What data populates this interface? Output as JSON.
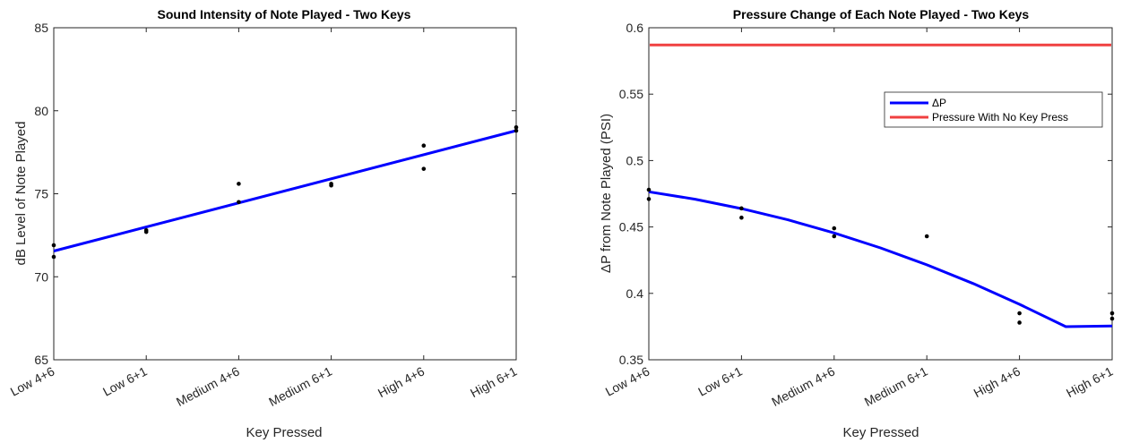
{
  "chart_data": [
    {
      "type": "scatter",
      "title": "Sound Intensity of Note Played - Two Keys",
      "xlabel": "Key Pressed",
      "ylabel": "dB Level of Note Played",
      "categories": [
        "Low 4+6",
        "Low 6+1",
        "Medium 4+6",
        "Medium 6+1",
        "High 4+6",
        "High 6+1"
      ],
      "ylim": [
        65,
        85
      ],
      "yticks": [
        "65",
        "70",
        "75",
        "80",
        "85"
      ],
      "grid": false,
      "points": [
        {
          "x": 1,
          "y": 71.9
        },
        {
          "x": 1,
          "y": 71.2
        },
        {
          "x": 2,
          "y": 72.8
        },
        {
          "x": 2,
          "y": 72.7
        },
        {
          "x": 3,
          "y": 75.6
        },
        {
          "x": 3,
          "y": 74.5
        },
        {
          "x": 4,
          "y": 75.6
        },
        {
          "x": 4,
          "y": 75.5
        },
        {
          "x": 5,
          "y": 77.9
        },
        {
          "x": 5,
          "y": 76.5
        },
        {
          "x": 6,
          "y": 79.0
        },
        {
          "x": 6,
          "y": 78.8
        }
      ],
      "fit": {
        "type": "linear",
        "x": [
          1,
          6
        ],
        "y": [
          71.55,
          78.8
        ],
        "color": "#0000ff"
      },
      "colors": {
        "points": "#000000",
        "fit": "#0000ff"
      }
    },
    {
      "type": "scatter",
      "title": "Pressure Change of Each Note Played - Two Keys",
      "xlabel": "Key Pressed",
      "ylabel": "ΔP from Note Played (PSI)",
      "categories": [
        "Low 4+6",
        "Low 6+1",
        "Medium 4+6",
        "Medium 6+1",
        "High 4+6",
        "High 6+1"
      ],
      "ylim": [
        0.35,
        0.6
      ],
      "yticks": [
        "0.35",
        "0.4",
        "0.45",
        "0.5",
        "0.55",
        "0.6"
      ],
      "grid": false,
      "points": [
        {
          "x": 1,
          "y": 0.478
        },
        {
          "x": 1,
          "y": 0.471
        },
        {
          "x": 2,
          "y": 0.464
        },
        {
          "x": 2,
          "y": 0.457
        },
        {
          "x": 3,
          "y": 0.449
        },
        {
          "x": 3,
          "y": 0.443
        },
        {
          "x": 4,
          "y": 0.443
        },
        {
          "x": 5,
          "y": 0.385
        },
        {
          "x": 5,
          "y": 0.378
        },
        {
          "x": 6,
          "y": 0.385
        },
        {
          "x": 6,
          "y": 0.381
        }
      ],
      "fit": {
        "type": "quadratic",
        "x": [
          1,
          1.5,
          2,
          2.5,
          3,
          3.5,
          4,
          4.5,
          5,
          5.5,
          6
        ],
        "y": [
          0.4765,
          0.4709,
          0.4638,
          0.4554,
          0.4455,
          0.4342,
          0.4215,
          0.4074,
          0.3918,
          0.3749,
          0.3755
        ],
        "name": "ΔP",
        "color": "#0000ff"
      },
      "reference": {
        "y": 0.587,
        "name": "Pressure With No Key Press",
        "color": "#f04040"
      },
      "legend": {
        "position": "top-right",
        "entries": [
          "ΔP",
          "Pressure With No Key Press"
        ]
      },
      "colors": {
        "points": "#000000",
        "fit": "#0000ff",
        "reference": "#f04040"
      }
    }
  ]
}
